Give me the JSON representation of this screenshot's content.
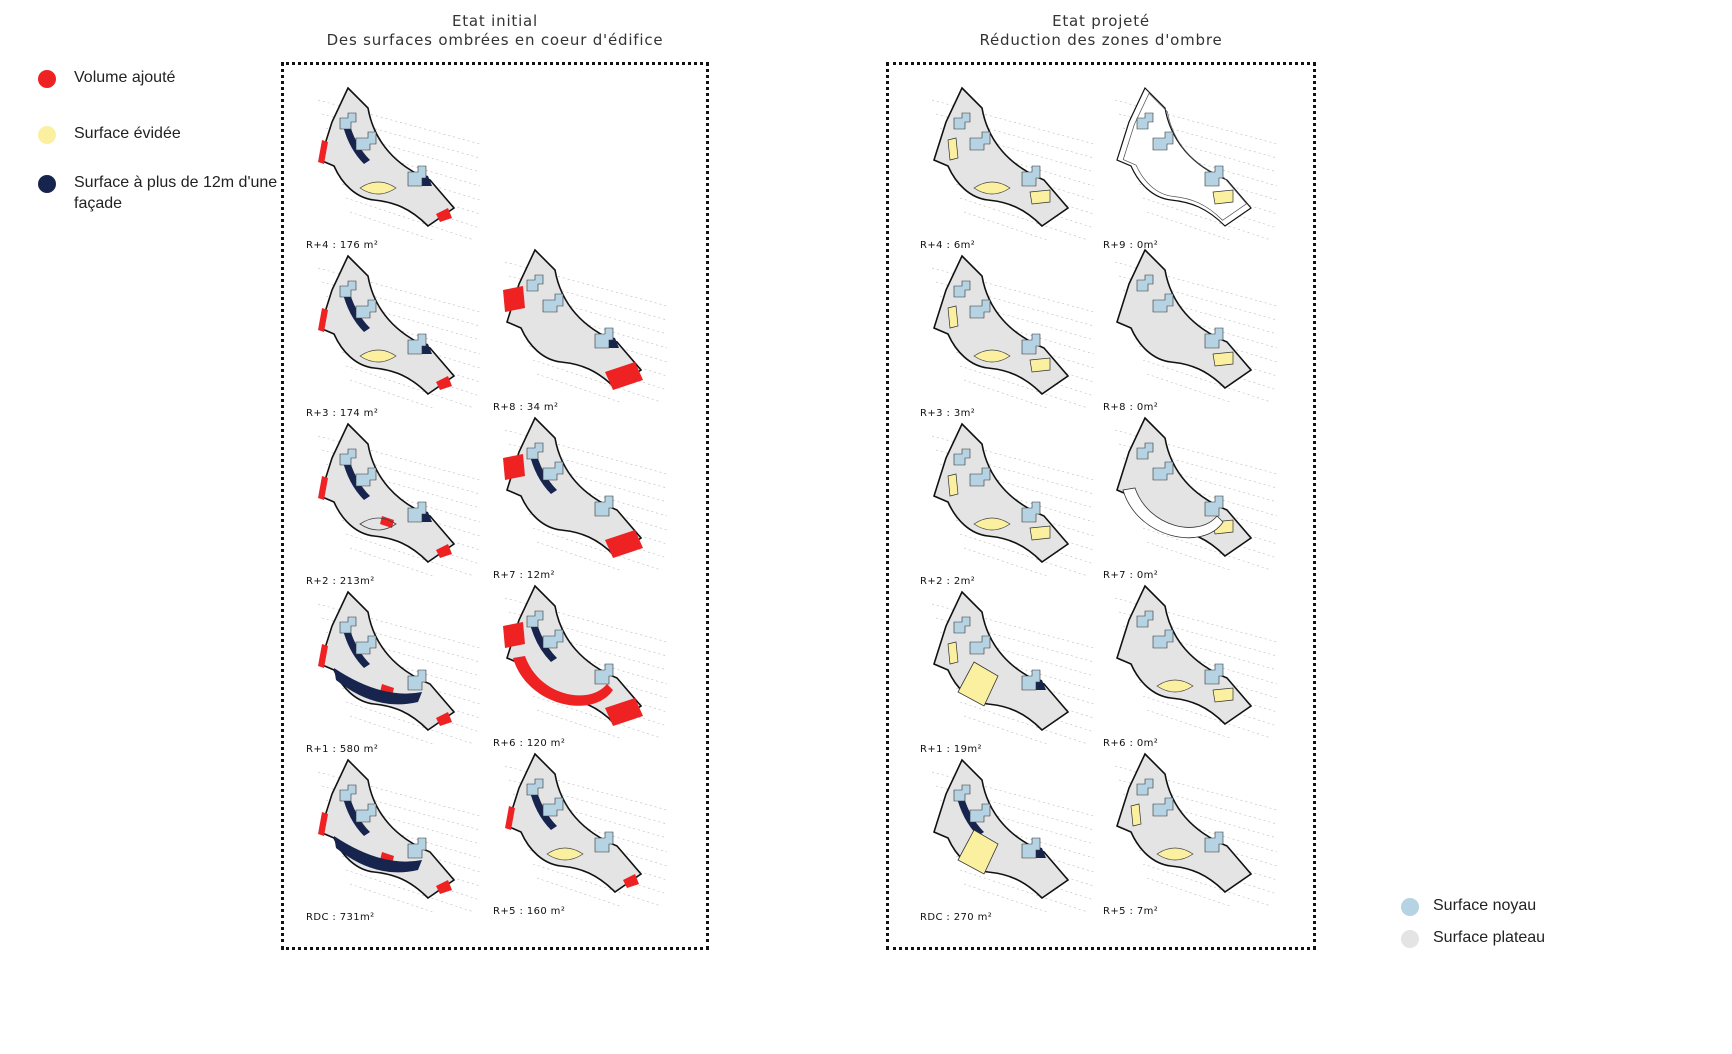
{
  "colors": {
    "added": "#ee2222",
    "hollowed": "#fbf0a0",
    "deep": "#17244e",
    "core": "#b5d3e2",
    "plate": "#e4e4e4"
  },
  "legend": {
    "added": "Volume ajouté",
    "hollowed": "Surface évidée",
    "deep_line1": "Surface à plus de 12m d'une",
    "deep_line2": "façade",
    "core": "Surface noyau",
    "plate": "Surface plateau"
  },
  "initial": {
    "title1": "Etat initial",
    "title2": "Des surfaces ombrées en coeur d'édifice",
    "left": [
      "R+4 : 176 m²",
      "R+3 : 174 m²",
      "R+2 : 213m²",
      "R+1 : 580 m²",
      "RDC : 731m²"
    ],
    "right": [
      "",
      "R+8 : 34 m²",
      "R+7 : 12m²",
      "R+6 : 120 m²",
      "R+5 : 160 m²"
    ]
  },
  "projected": {
    "title1": "Etat projeté",
    "title2": "Réduction des zones d'ombre",
    "left": [
      "R+4 : 6m²",
      "R+3 : 3m²",
      "R+2 : 2m²",
      "R+1 : 19m²",
      "RDC : 270 m²"
    ],
    "right": [
      "R+9 : 0m²",
      "R+8 : 0m²",
      "R+7 : 0m²",
      "R+6 : 0m²",
      "R+5 : 7m²"
    ]
  }
}
